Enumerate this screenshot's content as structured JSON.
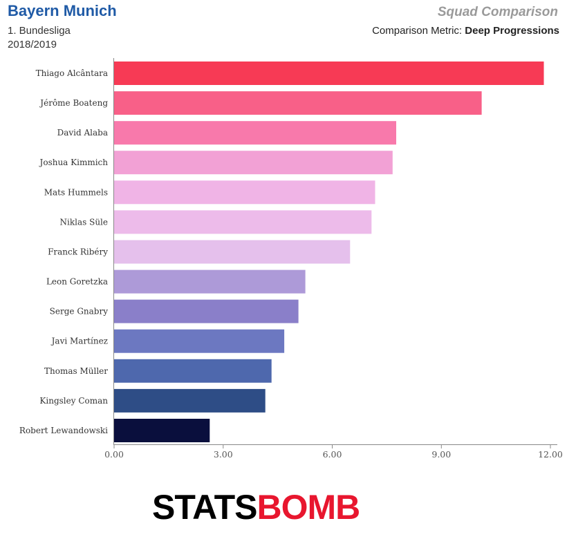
{
  "header": {
    "team": "Bayern Munich",
    "league": "1. Bundesliga",
    "season": "2018/2019",
    "title": "Squad Comparison",
    "metric_label": "Comparison Metric:",
    "metric_value": "Deep Progressions"
  },
  "logo": {
    "part1": "STATS",
    "part2": "BOMB",
    "colors": [
      "#000000",
      "#e8162e"
    ]
  },
  "chart_data": {
    "type": "bar",
    "orientation": "horizontal",
    "title": "",
    "xlabel": "",
    "ylabel": "",
    "xlim": [
      0,
      12
    ],
    "x_ticks": [
      "0.00",
      "3.00",
      "6.00",
      "9.00",
      "12.00"
    ],
    "grid": false,
    "categories": [
      "Thiago Alcântara",
      "Jérôme Boateng",
      "David Alaba",
      "Joshua Kimmich",
      "Mats Hummels",
      "Niklas Süle",
      "Franck Ribéry",
      "Leon Goretzka",
      "Serge Gnabry",
      "Javi Martínez",
      "Thomas Müller",
      "Kingsley Coman",
      "Robert Lewandowski"
    ],
    "values": [
      11.82,
      10.11,
      7.76,
      7.66,
      7.18,
      7.08,
      6.49,
      5.26,
      5.07,
      4.68,
      4.33,
      4.16,
      2.63
    ],
    "colors": [
      "#f73a55",
      "#f86088",
      "#f879ab",
      "#f2a1d5",
      "#f0b4e6",
      "#edbbea",
      "#e5c0ec",
      "#ad9ad8",
      "#8a7fc9",
      "#6c78c1",
      "#4e68ad",
      "#2e4d86",
      "#0a0f3d"
    ]
  }
}
